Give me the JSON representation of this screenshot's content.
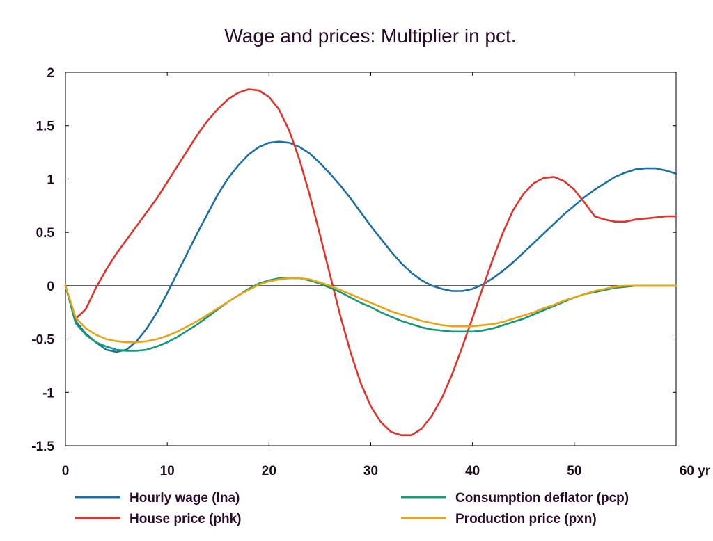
{
  "chart_data": {
    "type": "line",
    "title": "Wage and prices: Multiplier in pct.",
    "xlabel": "",
    "ylabel": "",
    "x_unit_label": "yr",
    "xlim": [
      0,
      60
    ],
    "ylim": [
      -1.5,
      2
    ],
    "x_ticks": [
      0,
      10,
      20,
      30,
      40,
      50,
      60
    ],
    "x_tick_labels": [
      "0",
      "10",
      "20",
      "30",
      "40",
      "50",
      "60 yr"
    ],
    "y_ticks": [
      -1.5,
      -1,
      -0.5,
      0,
      0.5,
      1,
      1.5,
      2
    ],
    "y_tick_labels": [
      "-1.5",
      "-1",
      "-0.5",
      "0",
      "0.5",
      "1",
      "1.5",
      "2"
    ],
    "grid": false,
    "zero_line": true,
    "legend_position": "bottom",
    "x": [
      0,
      1,
      2,
      3,
      4,
      5,
      6,
      7,
      8,
      9,
      10,
      11,
      12,
      13,
      14,
      15,
      16,
      17,
      18,
      19,
      20,
      21,
      22,
      23,
      24,
      25,
      26,
      27,
      28,
      29,
      30,
      31,
      32,
      33,
      34,
      35,
      36,
      37,
      38,
      39,
      40,
      41,
      42,
      43,
      44,
      45,
      46,
      47,
      48,
      49,
      50,
      51,
      52,
      53,
      54,
      55,
      56,
      57,
      58,
      59,
      60
    ],
    "series": [
      {
        "name": "Hourly wage (lna)",
        "color": "#1a6fa8",
        "values": [
          0,
          -0.33,
          -0.45,
          -0.53,
          -0.6,
          -0.62,
          -0.6,
          -0.52,
          -0.4,
          -0.25,
          -0.07,
          0.12,
          0.31,
          0.5,
          0.68,
          0.86,
          1.01,
          1.13,
          1.23,
          1.3,
          1.34,
          1.35,
          1.34,
          1.3,
          1.24,
          1.15,
          1.05,
          0.94,
          0.82,
          0.69,
          0.56,
          0.44,
          0.32,
          0.21,
          0.12,
          0.05,
          0.0,
          -0.03,
          -0.05,
          -0.05,
          -0.03,
          0.01,
          0.07,
          0.14,
          0.22,
          0.31,
          0.4,
          0.49,
          0.58,
          0.67,
          0.75,
          0.83,
          0.9,
          0.96,
          1.02,
          1.06,
          1.09,
          1.1,
          1.1,
          1.08,
          1.05
        ]
      },
      {
        "name": "House price (phk)",
        "color": "#e0342a",
        "values": [
          0,
          -0.31,
          -0.22,
          -0.02,
          0.15,
          0.3,
          0.43,
          0.56,
          0.69,
          0.82,
          0.97,
          1.12,
          1.27,
          1.42,
          1.55,
          1.66,
          1.75,
          1.81,
          1.84,
          1.83,
          1.77,
          1.65,
          1.45,
          1.18,
          0.85,
          0.48,
          0.1,
          -0.28,
          -0.62,
          -0.91,
          -1.13,
          -1.28,
          -1.37,
          -1.4,
          -1.4,
          -1.34,
          -1.22,
          -1.05,
          -0.83,
          -0.57,
          -0.3,
          -0.02,
          0.25,
          0.5,
          0.71,
          0.86,
          0.96,
          1.01,
          1.02,
          0.98,
          0.9,
          0.78,
          0.65,
          0.62,
          0.6,
          0.6,
          0.62,
          0.63,
          0.64,
          0.65,
          0.65
        ]
      },
      {
        "name": "Consumption deflator (pcp)",
        "color": "#149a78",
        "values": [
          0,
          -0.35,
          -0.46,
          -0.53,
          -0.57,
          -0.6,
          -0.61,
          -0.61,
          -0.6,
          -0.57,
          -0.53,
          -0.48,
          -0.42,
          -0.36,
          -0.29,
          -0.22,
          -0.15,
          -0.09,
          -0.03,
          0.02,
          0.05,
          0.07,
          0.07,
          0.07,
          0.05,
          0.02,
          -0.02,
          -0.06,
          -0.11,
          -0.16,
          -0.2,
          -0.25,
          -0.29,
          -0.33,
          -0.36,
          -0.39,
          -0.41,
          -0.42,
          -0.43,
          -0.43,
          -0.43,
          -0.42,
          -0.4,
          -0.37,
          -0.34,
          -0.31,
          -0.27,
          -0.23,
          -0.19,
          -0.15,
          -0.11,
          -0.08,
          -0.06,
          -0.04,
          -0.02,
          -0.01,
          0,
          0,
          0,
          0,
          0
        ]
      },
      {
        "name": "Production price (pxn)",
        "color": "#e8a412",
        "values": [
          0,
          -0.3,
          -0.4,
          -0.46,
          -0.5,
          -0.52,
          -0.53,
          -0.53,
          -0.52,
          -0.5,
          -0.47,
          -0.43,
          -0.38,
          -0.33,
          -0.27,
          -0.21,
          -0.15,
          -0.09,
          -0.04,
          0.01,
          0.04,
          0.06,
          0.07,
          0.07,
          0.06,
          0.03,
          0,
          -0.04,
          -0.08,
          -0.12,
          -0.16,
          -0.2,
          -0.24,
          -0.27,
          -0.3,
          -0.33,
          -0.35,
          -0.37,
          -0.38,
          -0.38,
          -0.38,
          -0.37,
          -0.36,
          -0.34,
          -0.31,
          -0.28,
          -0.25,
          -0.21,
          -0.18,
          -0.14,
          -0.11,
          -0.08,
          -0.05,
          -0.03,
          -0.01,
          0,
          0,
          0,
          0,
          0,
          0
        ]
      }
    ]
  }
}
